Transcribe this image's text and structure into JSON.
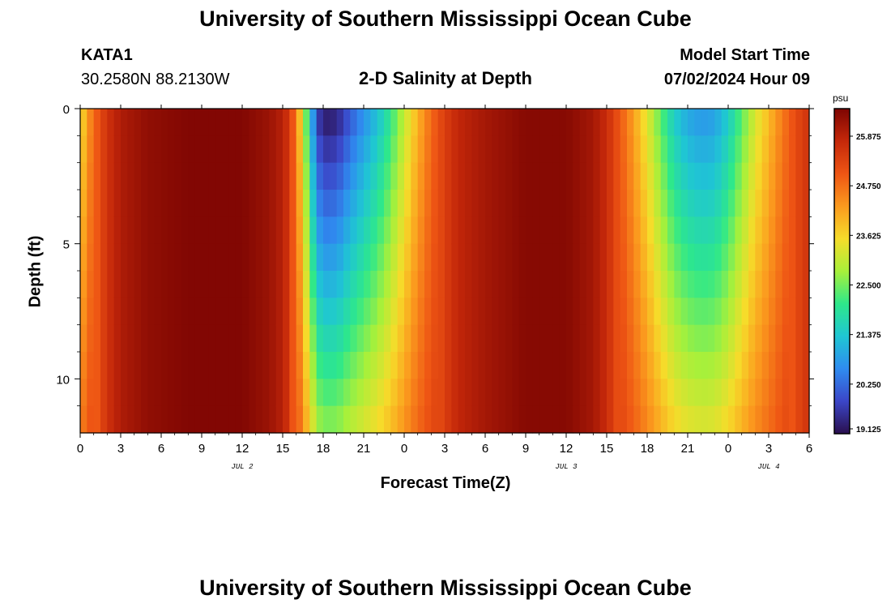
{
  "page": {
    "title": "University of Southern Mississippi Ocean Cube",
    "station": "KATA1",
    "coords": "30.2580N  88.2130W",
    "start_label": "Model Start Time",
    "start_time": "07/02/2024 Hour 09",
    "footer_title": "University of Southern Mississippi Ocean Cube"
  },
  "chart_data": {
    "type": "heatmap",
    "title": "2-D Salinity at Depth",
    "xlabel": "Forecast Time(Z)",
    "ylabel": "Depth (ft)",
    "units": "psu",
    "x_ticks": [
      "0",
      "3",
      "6",
      "9",
      "12",
      "15",
      "18",
      "21",
      "0",
      "3",
      "6",
      "9",
      "12",
      "15",
      "18",
      "21",
      "0",
      "3",
      "6"
    ],
    "x_tick_hours": [
      0,
      3,
      6,
      9,
      12,
      15,
      18,
      21,
      24,
      27,
      30,
      33,
      36,
      39,
      42,
      45,
      48,
      51,
      54
    ],
    "day_labels": [
      {
        "label": "JUL 2",
        "hour": 12
      },
      {
        "label": "JUL 3",
        "hour": 36
      },
      {
        "label": "JUL 4",
        "hour": 51
      }
    ],
    "y_ticks": [
      0,
      5,
      10
    ],
    "xlim": [
      0,
      54
    ],
    "ylim": [
      0,
      12
    ],
    "colorbar": {
      "min": 19.125,
      "max": 26.5,
      "ticks": [
        "25.875",
        "24.750",
        "23.625",
        "22.500",
        "21.375",
        "20.250",
        "19.125"
      ],
      "tick_values": [
        25.875,
        24.75,
        23.625,
        22.5,
        21.375,
        20.25,
        19.125
      ],
      "colors": [
        "#2a0f4e",
        "#3b46c8",
        "#2f8cf0",
        "#1fc6d3",
        "#2ee88a",
        "#a8f03a",
        "#f6dc2a",
        "#fb9a1e",
        "#ee5514",
        "#c5280a",
        "#7d0502"
      ]
    },
    "salinity_profile_note": "",
    "surface_salinity_by_hour": [
      [
        0,
        23.4
      ],
      [
        0.5,
        24.2
      ],
      [
        1,
        24.8
      ],
      [
        2,
        25.6
      ],
      [
        3,
        26.0
      ],
      [
        5,
        26.3
      ],
      [
        8,
        26.45
      ],
      [
        12,
        26.45
      ],
      [
        14,
        26.2
      ],
      [
        15,
        25.9
      ],
      [
        15.5,
        25.5
      ],
      [
        16,
        24.6
      ],
      [
        16.5,
        23.2
      ],
      [
        17,
        21.5
      ],
      [
        17.5,
        19.8
      ],
      [
        18,
        19.2
      ],
      [
        19,
        19.3
      ],
      [
        20,
        20.0
      ],
      [
        21,
        20.6
      ],
      [
        22,
        21.2
      ],
      [
        23,
        22.0
      ],
      [
        24,
        23.0
      ],
      [
        25,
        24.0
      ],
      [
        26,
        24.8
      ],
      [
        27,
        25.4
      ],
      [
        28,
        25.8
      ],
      [
        30,
        26.1
      ],
      [
        33,
        26.4
      ],
      [
        36,
        26.4
      ],
      [
        38,
        26.1
      ],
      [
        39,
        25.7
      ],
      [
        40,
        25.0
      ],
      [
        41,
        24.2
      ],
      [
        42,
        23.3
      ],
      [
        43,
        22.3
      ],
      [
        44,
        21.4
      ],
      [
        45,
        20.9
      ],
      [
        46,
        20.7
      ],
      [
        47,
        20.8
      ],
      [
        48,
        21.4
      ],
      [
        49,
        22.3
      ],
      [
        50,
        23.2
      ],
      [
        51,
        23.9
      ],
      [
        52,
        24.6
      ],
      [
        53,
        25.2
      ],
      [
        54,
        25.6
      ]
    ]
  }
}
